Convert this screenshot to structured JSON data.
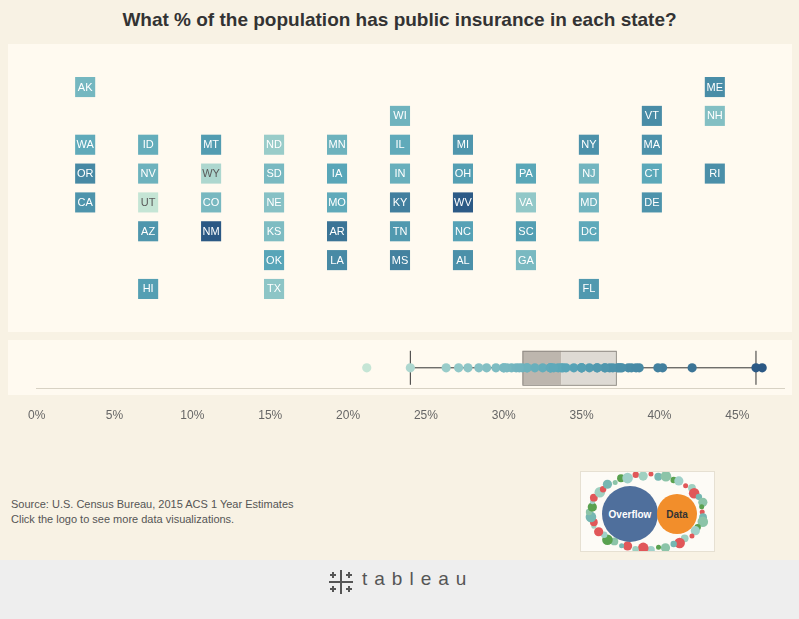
{
  "chart_data": {
    "type": "tile_map",
    "title": "What % of the population has public insurance in each state?",
    "tiles": [
      {
        "state": "AK",
        "col": 0,
        "row": 0,
        "value": 30.5
      },
      {
        "state": "ME",
        "col": 10,
        "row": 0,
        "value": 38.0
      },
      {
        "state": "WI",
        "col": 5,
        "row": 1,
        "value": 31.2
      },
      {
        "state": "VT",
        "col": 9,
        "row": 1,
        "value": 38.2
      },
      {
        "state": "NH",
        "col": 10,
        "row": 1,
        "value": 28.9
      },
      {
        "state": "WA",
        "col": 0,
        "row": 2,
        "value": 33.0
      },
      {
        "state": "ID",
        "col": 1,
        "row": 2,
        "value": 32.5
      },
      {
        "state": "MT",
        "col": 2,
        "row": 2,
        "value": 35.5
      },
      {
        "state": "ND",
        "col": 3,
        "row": 2,
        "value": 26.3
      },
      {
        "state": "MN",
        "col": 4,
        "row": 2,
        "value": 31.5
      },
      {
        "state": "IL",
        "col": 5,
        "row": 2,
        "value": 33.0
      },
      {
        "state": "MI",
        "col": 6,
        "row": 2,
        "value": 36.5
      },
      {
        "state": "NY",
        "col": 8,
        "row": 2,
        "value": 37.4
      },
      {
        "state": "MA",
        "col": 9,
        "row": 2,
        "value": 37.3
      },
      {
        "state": "OR",
        "col": 0,
        "row": 3,
        "value": 38.7
      },
      {
        "state": "NV",
        "col": 1,
        "row": 3,
        "value": 31.5
      },
      {
        "state": "WY",
        "col": 2,
        "row": 3,
        "value": 24.0
      },
      {
        "state": "SD",
        "col": 3,
        "row": 3,
        "value": 30.0
      },
      {
        "state": "IA",
        "col": 4,
        "row": 3,
        "value": 33.8
      },
      {
        "state": "IN",
        "col": 5,
        "row": 3,
        "value": 32.0
      },
      {
        "state": "OH",
        "col": 6,
        "row": 3,
        "value": 35.0
      },
      {
        "state": "PA",
        "col": 7,
        "row": 3,
        "value": 33.7
      },
      {
        "state": "NJ",
        "col": 8,
        "row": 3,
        "value": 30.8
      },
      {
        "state": "CT",
        "col": 9,
        "row": 3,
        "value": 33.5
      },
      {
        "state": "RI",
        "col": 10,
        "row": 3,
        "value": 37.6
      },
      {
        "state": "CA",
        "col": 0,
        "row": 4,
        "value": 36.8
      },
      {
        "state": "UT",
        "col": 1,
        "row": 4,
        "value": 21.2
      },
      {
        "state": "CO",
        "col": 2,
        "row": 4,
        "value": 30.2
      },
      {
        "state": "NE",
        "col": 3,
        "row": 4,
        "value": 28.4
      },
      {
        "state": "MO",
        "col": 4,
        "row": 4,
        "value": 33.0
      },
      {
        "state": "KY",
        "col": 5,
        "row": 4,
        "value": 40.2
      },
      {
        "state": "WV",
        "col": 6,
        "row": 4,
        "value": 46.2
      },
      {
        "state": "VA",
        "col": 7,
        "row": 4,
        "value": 27.1
      },
      {
        "state": "MD",
        "col": 8,
        "row": 4,
        "value": 31.0
      },
      {
        "state": "DE",
        "col": 9,
        "row": 4,
        "value": 37.0
      },
      {
        "state": "AZ",
        "col": 1,
        "row": 5,
        "value": 36.5
      },
      {
        "state": "NM",
        "col": 2,
        "row": 5,
        "value": 46.6
      },
      {
        "state": "KS",
        "col": 3,
        "row": 5,
        "value": 29.5
      },
      {
        "state": "AR",
        "col": 4,
        "row": 5,
        "value": 42.1
      },
      {
        "state": "TN",
        "col": 5,
        "row": 5,
        "value": 36.0
      },
      {
        "state": "NC",
        "col": 6,
        "row": 5,
        "value": 34.5
      },
      {
        "state": "SC",
        "col": 7,
        "row": 5,
        "value": 35.0
      },
      {
        "state": "DC",
        "col": 8,
        "row": 5,
        "value": 33.2
      },
      {
        "state": "OK",
        "col": 3,
        "row": 6,
        "value": 34.0
      },
      {
        "state": "LA",
        "col": 4,
        "row": 6,
        "value": 38.5
      },
      {
        "state": "MS",
        "col": 5,
        "row": 6,
        "value": 39.9
      },
      {
        "state": "AL",
        "col": 6,
        "row": 6,
        "value": 37.5
      },
      {
        "state": "GA",
        "col": 7,
        "row": 6,
        "value": 30.0
      },
      {
        "state": "HI",
        "col": 1,
        "row": 7,
        "value": 35.0
      },
      {
        "state": "TX",
        "col": 3,
        "row": 7,
        "value": 27.7
      },
      {
        "state": "FL",
        "col": 8,
        "row": 7,
        "value": 36.0
      }
    ],
    "box": {
      "whisker_low": 24.0,
      "q1": 31.2,
      "median": 33.7,
      "q3": 37.2,
      "whisker_high": 46.2
    },
    "xlim": [
      0,
      48
    ],
    "xticks": [
      {
        "value": 0,
        "label": "0%"
      },
      {
        "value": 5,
        "label": "5%"
      },
      {
        "value": 10,
        "label": "10%"
      },
      {
        "value": 15,
        "label": "15%"
      },
      {
        "value": 20,
        "label": "20%"
      },
      {
        "value": 25,
        "label": "25%"
      },
      {
        "value": 30,
        "label": "30%"
      },
      {
        "value": 35,
        "label": "35%"
      },
      {
        "value": 40,
        "label": "40%"
      },
      {
        "value": 45,
        "label": "45%"
      }
    ],
    "grid": false,
    "source": "Source: U.S. Census Bureau, 2015 ACS 1 Year Estimates",
    "note": "Click the logo to see more data visualizations.",
    "logo": [
      "Overflow",
      "Data"
    ],
    "footer": "tableau"
  }
}
